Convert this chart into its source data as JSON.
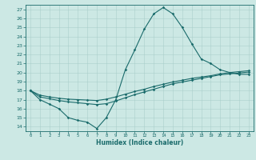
{
  "xlabel": "Humidex (Indice chaleur)",
  "ylabel": "",
  "xlim": [
    -0.5,
    23.5
  ],
  "ylim": [
    13.5,
    27.5
  ],
  "yticks": [
    14,
    15,
    16,
    17,
    18,
    19,
    20,
    21,
    22,
    23,
    24,
    25,
    26,
    27
  ],
  "xticks": [
    0,
    1,
    2,
    3,
    4,
    5,
    6,
    7,
    8,
    9,
    10,
    11,
    12,
    13,
    14,
    15,
    16,
    17,
    18,
    19,
    20,
    21,
    22,
    23
  ],
  "bg_color": "#cce8e4",
  "line_color": "#1a6b6b",
  "grid_color": "#aacfcb",
  "line1_x": [
    0,
    1,
    2,
    3,
    4,
    5,
    6,
    7,
    8,
    9,
    10,
    11,
    12,
    13,
    14,
    15,
    16,
    17,
    18,
    19,
    20,
    21,
    22,
    23
  ],
  "line1_y": [
    18,
    17,
    16.5,
    16,
    15,
    14.7,
    14.5,
    13.8,
    15,
    17,
    20.3,
    22.5,
    24.8,
    26.5,
    27.2,
    26.5,
    25,
    23.2,
    21.5,
    21,
    20.3,
    20,
    19.8,
    19.8
  ],
  "line2_x": [
    0,
    1,
    2,
    3,
    4,
    5,
    6,
    7,
    8,
    9,
    10,
    11,
    12,
    13,
    14,
    15,
    16,
    17,
    18,
    19,
    20,
    21,
    22,
    23
  ],
  "line2_y": [
    18,
    17.5,
    17.3,
    17.15,
    17.05,
    17.0,
    16.95,
    16.9,
    17.05,
    17.3,
    17.6,
    17.9,
    18.15,
    18.45,
    18.7,
    18.95,
    19.15,
    19.35,
    19.5,
    19.65,
    19.85,
    20.0,
    20.1,
    20.2
  ],
  "line3_x": [
    0,
    1,
    2,
    3,
    4,
    5,
    6,
    7,
    8,
    9,
    10,
    11,
    12,
    13,
    14,
    15,
    16,
    17,
    18,
    19,
    20,
    21,
    22,
    23
  ],
  "line3_y": [
    18,
    17.3,
    17.1,
    16.9,
    16.75,
    16.65,
    16.55,
    16.45,
    16.55,
    16.85,
    17.2,
    17.55,
    17.85,
    18.15,
    18.45,
    18.75,
    18.95,
    19.15,
    19.35,
    19.55,
    19.75,
    19.85,
    19.95,
    20.05
  ]
}
